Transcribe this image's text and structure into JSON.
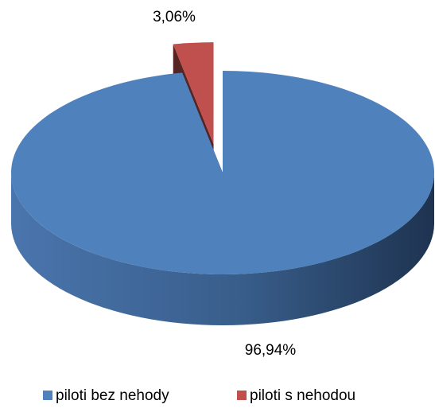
{
  "chart_data": {
    "type": "pie3d",
    "categories": [
      "piloti bez nehody",
      "piloti s nehodou"
    ],
    "values": [
      96.94,
      3.06
    ],
    "value_labels": [
      "96,94%",
      "3,06%"
    ],
    "colors": [
      "#4f81bd",
      "#c0504d"
    ],
    "explode": [
      false,
      true
    ],
    "legend": "bottom"
  }
}
